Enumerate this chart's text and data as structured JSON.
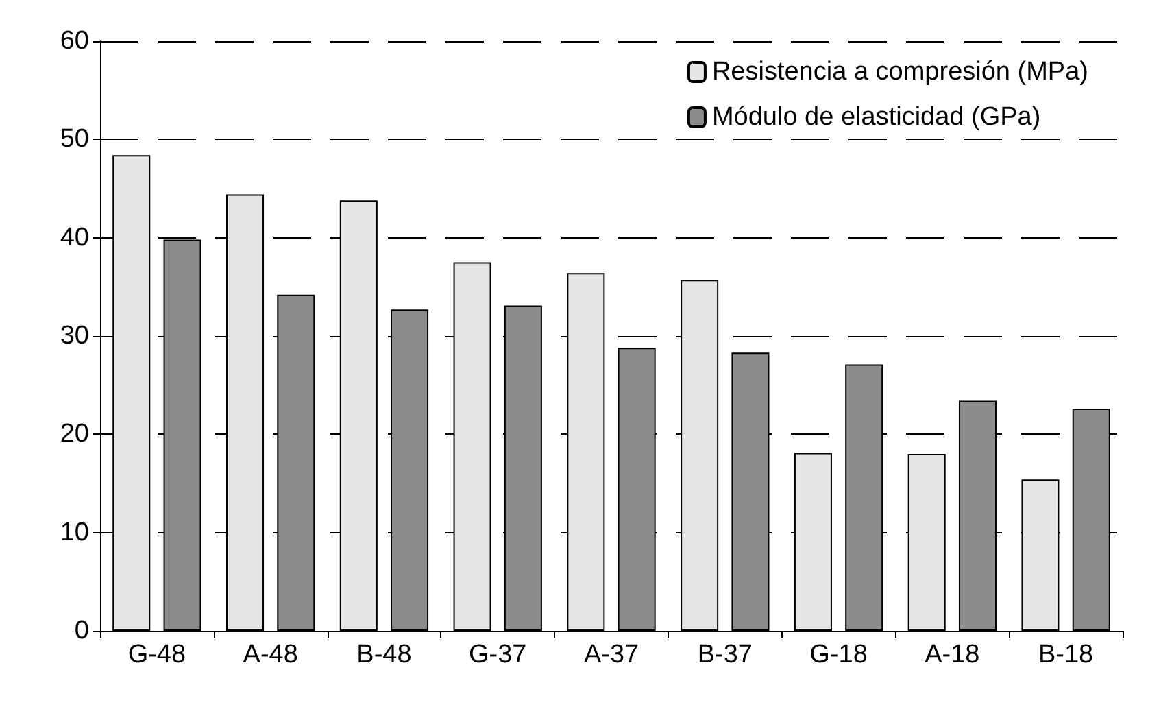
{
  "chart_data": {
    "type": "bar",
    "categories": [
      "G-48",
      "A-48",
      "B-48",
      "G-37",
      "A-37",
      "B-37",
      "G-18",
      "A-18",
      "B-18"
    ],
    "series": [
      {
        "name": "Resistencia a compresión (MPa)",
        "color": "#e6e6e6",
        "values": [
          48.4,
          44.4,
          43.8,
          37.5,
          36.4,
          35.7,
          18.1,
          18.0,
          15.4
        ]
      },
      {
        "name": "Módulo de elasticidad (GPa)",
        "color": "#8c8c8c",
        "values": [
          39.8,
          34.2,
          32.7,
          33.1,
          28.8,
          28.3,
          27.1,
          23.4,
          22.6
        ]
      }
    ],
    "ylim": [
      0,
      60
    ],
    "yticks": [
      0,
      10,
      20,
      30,
      40,
      50,
      60
    ],
    "grid": "y",
    "legend": "top right"
  }
}
